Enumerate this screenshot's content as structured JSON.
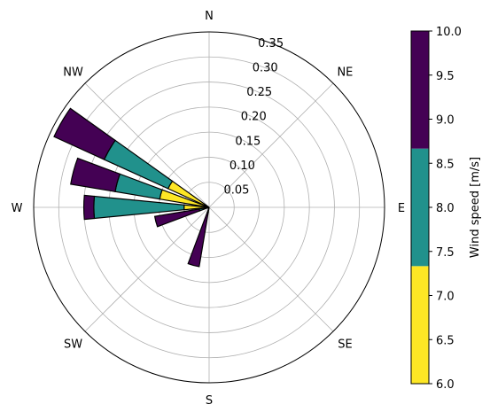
{
  "chart_data": {
    "type": "polar-bar",
    "title": "",
    "directions": [
      "N",
      "NE",
      "E",
      "SE",
      "S",
      "SW",
      "W",
      "NW"
    ],
    "r_ticks": [
      0.05,
      0.1,
      0.15,
      0.2,
      0.25,
      0.3,
      0.35
    ],
    "r_tick_labels": [
      "0.05",
      "0.10",
      "0.15",
      "0.20",
      "0.25",
      "0.30",
      "0.35"
    ],
    "rlim": [
      0,
      0.35
    ],
    "grid": true,
    "bins": [
      {
        "range": [
          6.0,
          7.33
        ],
        "color": "#fde725"
      },
      {
        "range": [
          7.33,
          8.67
        ],
        "color": "#21918c"
      },
      {
        "range": [
          8.67,
          10.0
        ],
        "color": "#440154"
      }
    ],
    "sectors": [
      {
        "direction_deg": 195,
        "stacked": [
          0.003,
          0.01,
          0.12
        ]
      },
      {
        "direction_deg": 270,
        "stacked": [
          0.05,
          0.23,
          0.25
        ]
      },
      {
        "direction_deg": 285,
        "stacked": [
          0.1,
          0.19,
          0.28
        ]
      },
      {
        "direction_deg": 300,
        "stacked": [
          0.09,
          0.23,
          0.34
        ]
      },
      {
        "direction_deg": 255,
        "stacked": [
          0.003,
          0.02,
          0.11
        ]
      }
    ],
    "colorbar": {
      "label": "Wind speed [m/s]",
      "range": [
        6.0,
        10.0
      ],
      "tick_values": [
        6.0,
        6.5,
        7.0,
        7.5,
        8.0,
        8.5,
        9.0,
        9.5,
        10.0
      ],
      "tick_labels": [
        "6.0",
        "6.5",
        "7.0",
        "7.5",
        "8.0",
        "8.5",
        "9.0",
        "9.5",
        "10.0"
      ],
      "colors": [
        "#fde725",
        "#21918c",
        "#440154"
      ]
    }
  }
}
